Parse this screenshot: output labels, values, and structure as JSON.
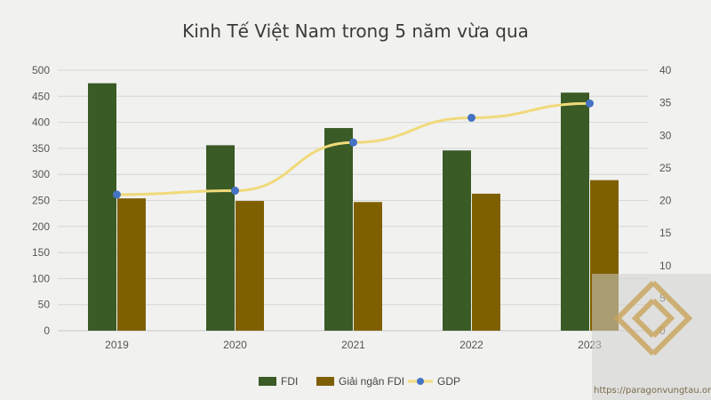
{
  "chart_data": {
    "type": "bar",
    "title": "Kinh Tế Việt Nam trong 5 năm vừa qua",
    "categories": [
      "2019",
      "2020",
      "2021",
      "2022",
      "2023"
    ],
    "series": [
      {
        "name": "FDI",
        "type": "bar",
        "axis": "left",
        "color": "#3a5a26",
        "values": [
          475,
          356,
          389,
          346,
          457
        ]
      },
      {
        "name": "Giải ngân FDI",
        "type": "bar",
        "axis": "left",
        "color": "#7f6000",
        "values": [
          254,
          249,
          247,
          263,
          289
        ]
      },
      {
        "name": "GDP",
        "type": "line",
        "axis": "right",
        "color": "#f0da7a",
        "marker_color": "#4472c4",
        "values": [
          20.9,
          21.5,
          28.9,
          32.7,
          34.9
        ]
      }
    ],
    "y_left": {
      "min": 0,
      "max": 500,
      "step": 50,
      "ticks": [
        "0",
        "50",
        "100",
        "150",
        "200",
        "250",
        "300",
        "350",
        "400",
        "450",
        "500"
      ]
    },
    "y_right": {
      "min": 0,
      "max": 40,
      "step": 5,
      "ticks": [
        "0",
        "5",
        "10",
        "15",
        "20",
        "25",
        "30",
        "35",
        "40"
      ]
    },
    "grid": true,
    "legend_position": "bottom"
  },
  "watermark": {
    "url": "https://paragonvungtau.org/",
    "icon": "paragon-logo-icon"
  }
}
